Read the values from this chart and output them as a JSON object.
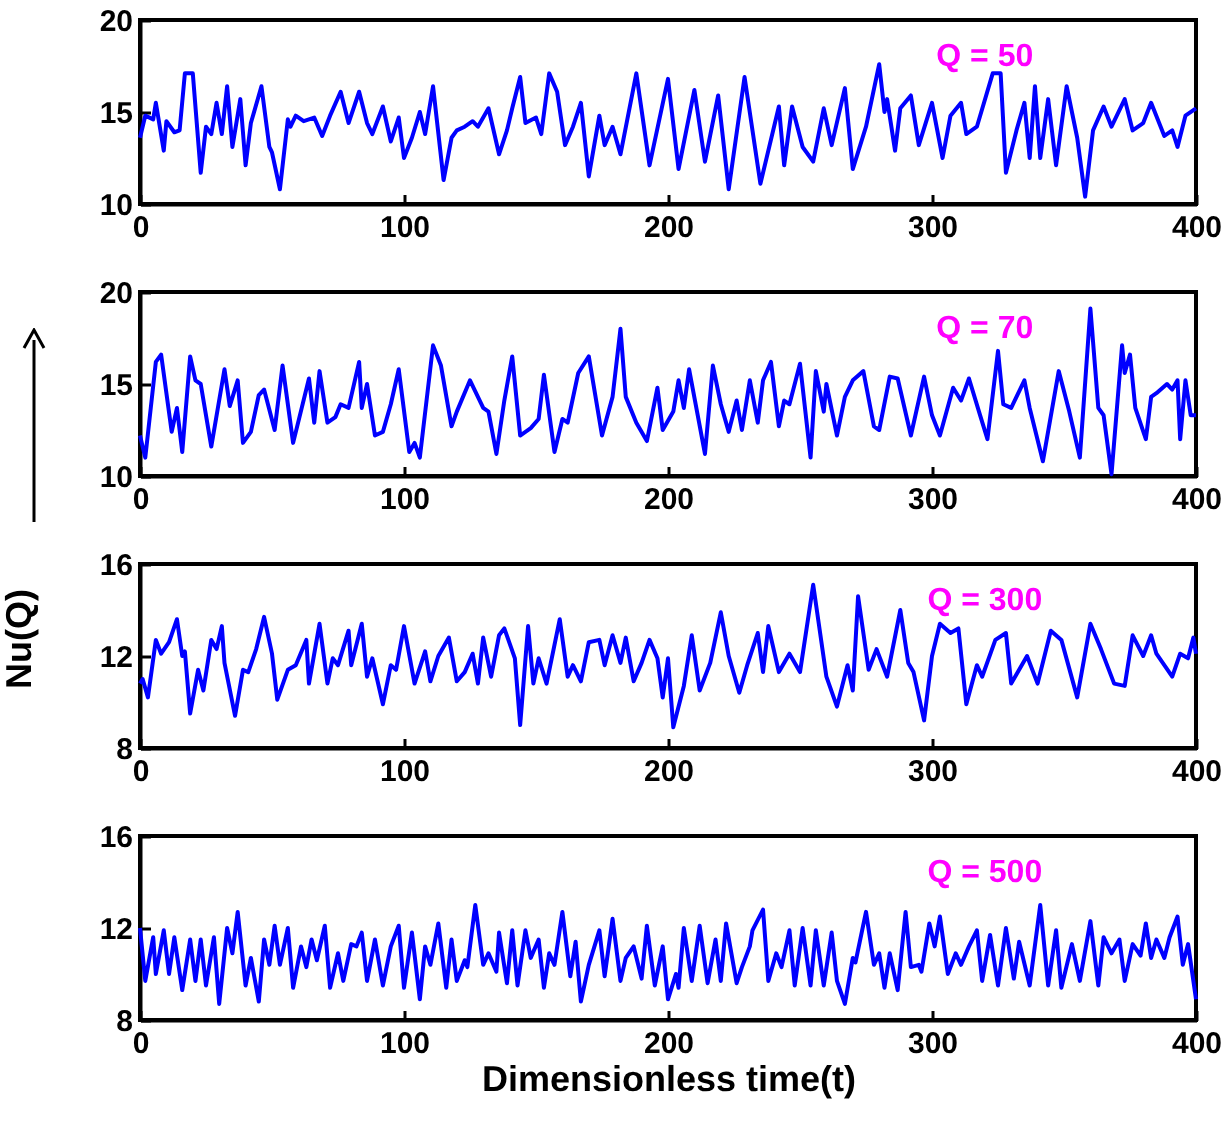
{
  "chart_data": [
    {
      "type": "line",
      "x": [
        0,
        2,
        5,
        6,
        9,
        10,
        13,
        15,
        17,
        20,
        23,
        25,
        27,
        29,
        31,
        33,
        35,
        38,
        40,
        42,
        46,
        49,
        50,
        53,
        56,
        57,
        59,
        62,
        66,
        69,
        72,
        76,
        79,
        83,
        86,
        88,
        92,
        95,
        98,
        100,
        103,
        106,
        108,
        111,
        115,
        118,
        120,
        123,
        126,
        128,
        132,
        136,
        139,
        141,
        144,
        146,
        150,
        152,
        155,
        158,
        161,
        164,
        167,
        170,
        174,
        176,
        179,
        182,
        188,
        193,
        200,
        204,
        210,
        214,
        219,
        223,
        229,
        235,
        242,
        244,
        247,
        251,
        255,
        259,
        262,
        267,
        270,
        275,
        280,
        282,
        283,
        286,
        288,
        292,
        295,
        300,
        304,
        307,
        311,
        313,
        317,
        323,
        326,
        328,
        332,
        335,
        337,
        339,
        341,
        344,
        347,
        351,
        355,
        358,
        361,
        365,
        368,
        373,
        376,
        380,
        383,
        388,
        391,
        393,
        396,
        400
      ],
      "series": [
        {
          "color": "#0000ff",
          "values": [
            13.6,
            14.8,
            14.6,
            15.5,
            12.9,
            14.5,
            13.9,
            14.0,
            17.1,
            17.1,
            11.7,
            14.2,
            13.8,
            15.5,
            13.8,
            16.4,
            13.1,
            15.7,
            12.1,
            14.4,
            16.4,
            13.1,
            12.8,
            10.8,
            14.6,
            14.2,
            14.8,
            14.5,
            14.7,
            13.7,
            14.8,
            16.1,
            14.4,
            16.1,
            14.4,
            13.8,
            15.3,
            13.4,
            14.7,
            12.5,
            13.6,
            15.0,
            13.8,
            16.4,
            11.3,
            13.6,
            14.0,
            14.2,
            14.5,
            14.2,
            15.2,
            12.7,
            14.0,
            15.2,
            16.9,
            14.4,
            14.7,
            13.8,
            17.1,
            16.1,
            13.2,
            14.2,
            15.5,
            11.5,
            14.8,
            13.2,
            14.2,
            12.7,
            17.1,
            12.1,
            16.8,
            11.9,
            16.2,
            12.3,
            15.9,
            10.8,
            16.9,
            11.1,
            15.3,
            12.1,
            15.3,
            13.1,
            12.3,
            15.2,
            13.2,
            16.3,
            11.9,
            14.2,
            17.6,
            15.0,
            15.7,
            12.9,
            15.2,
            15.9,
            13.2,
            15.5,
            12.5,
            14.8,
            15.5,
            13.8,
            14.2,
            17.1,
            17.1,
            11.7,
            14.0,
            15.5,
            12.5,
            16.4,
            12.5,
            15.7,
            12.1,
            16.4,
            13.6,
            10.4,
            14.0,
            15.3,
            14.2,
            15.7,
            14.0,
            14.4,
            15.5,
            13.7,
            14.0,
            13.1,
            14.8,
            15.2
          ]
        }
      ],
      "xlim": [
        0,
        400
      ],
      "xticks": [
        0,
        100,
        200,
        300,
        400
      ],
      "ylim": [
        10,
        20
      ],
      "yticks": [
        10,
        15,
        20
      ],
      "annotations": [
        "Q = 50"
      ]
    },
    {
      "type": "line",
      "x": [
        0,
        2,
        6,
        8,
        12,
        14,
        16,
        19,
        21,
        23,
        27,
        32,
        34,
        37,
        39,
        42,
        45,
        47,
        51,
        54,
        58,
        64,
        66,
        68,
        71,
        74,
        76,
        79,
        83,
        84,
        86,
        89,
        92,
        95,
        98,
        102,
        104,
        106,
        111,
        114,
        118,
        120,
        125,
        130,
        132,
        135,
        138,
        141,
        144,
        148,
        151,
        153,
        157,
        160,
        162,
        166,
        170,
        175,
        179,
        182,
        184,
        188,
        192,
        196,
        198,
        202,
        204,
        206,
        208,
        214,
        217,
        220,
        223,
        226,
        228,
        231,
        234,
        236,
        239,
        242,
        244,
        246,
        250,
        254,
        256,
        259,
        260,
        264,
        267,
        270,
        274,
        278,
        280,
        284,
        287,
        292,
        297,
        300,
        303,
        308,
        311,
        314,
        318,
        321,
        325,
        327,
        330,
        335,
        337,
        342,
        348,
        352,
        356,
        360,
        363,
        365,
        368,
        372,
        373,
        375,
        377,
        381,
        383,
        385,
        389,
        391,
        393,
        394,
        396,
        398,
        400
      ],
      "series": [
        {
          "color": "#0000ff",
          "values": [
            12.2,
            11.0,
            16.2,
            16.6,
            12.4,
            13.7,
            11.3,
            16.5,
            15.2,
            15.0,
            11.6,
            15.8,
            13.8,
            15.2,
            11.8,
            12.4,
            14.4,
            14.7,
            12.5,
            16.0,
            11.8,
            15.3,
            12.9,
            15.7,
            12.9,
            13.2,
            13.9,
            13.7,
            16.2,
            13.7,
            15.0,
            12.2,
            12.4,
            13.9,
            15.8,
            11.3,
            11.8,
            11.0,
            17.1,
            16.0,
            12.7,
            13.5,
            15.2,
            13.7,
            13.5,
            11.2,
            14.1,
            16.5,
            12.2,
            12.6,
            13.1,
            15.5,
            11.3,
            13.1,
            12.9,
            15.6,
            16.5,
            12.2,
            14.3,
            18.0,
            14.3,
            12.9,
            11.9,
            14.8,
            12.5,
            13.5,
            15.2,
            13.7,
            15.8,
            11.2,
            16.0,
            13.9,
            12.4,
            14.1,
            12.5,
            15.2,
            12.9,
            15.2,
            16.2,
            12.7,
            14.1,
            13.9,
            16.1,
            11.0,
            15.7,
            13.5,
            15.0,
            12.2,
            14.3,
            15.2,
            15.7,
            12.7,
            12.5,
            15.4,
            15.3,
            12.2,
            15.4,
            13.3,
            12.2,
            14.8,
            14.1,
            15.3,
            13.4,
            12.0,
            16.8,
            13.9,
            13.7,
            15.2,
            13.7,
            10.8,
            15.7,
            13.5,
            11.0,
            19.1,
            13.7,
            13.3,
            10.1,
            17.1,
            15.6,
            16.6,
            13.7,
            12.0,
            14.3,
            14.5,
            15.0,
            14.7,
            15.2,
            12.0,
            15.2,
            13.3,
            13.3
          ]
        }
      ],
      "xlim": [
        0,
        400
      ],
      "xticks": [
        0,
        100,
        200,
        300,
        400
      ],
      "ylim": [
        10,
        20
      ],
      "yticks": [
        10,
        15,
        20
      ],
      "annotations": [
        "Q = 70"
      ]
    },
    {
      "type": "line",
      "ylabel": "Nu(Q)",
      "x": [
        0,
        1,
        3,
        6,
        8,
        11,
        14,
        16,
        17,
        19,
        22,
        24,
        27,
        29,
        31,
        32,
        36,
        39,
        41,
        44,
        47,
        50,
        52,
        56,
        59,
        63,
        64,
        68,
        71,
        73,
        75,
        79,
        80,
        84,
        86,
        88,
        92,
        95,
        97,
        100,
        104,
        108,
        110,
        113,
        117,
        120,
        123,
        126,
        128,
        130,
        133,
        136,
        138,
        142,
        144,
        147,
        149,
        151,
        154,
        159,
        162,
        164,
        167,
        170,
        174,
        176,
        179,
        182,
        184,
        187,
        190,
        193,
        196,
        198,
        200,
        202,
        206,
        209,
        212,
        216,
        220,
        223,
        227,
        230,
        234,
        236,
        238,
        242,
        246,
        250,
        255,
        260,
        264,
        268,
        270,
        272,
        276,
        279,
        283,
        288,
        291,
        293,
        297,
        300,
        303,
        307,
        310,
        313,
        317,
        319,
        324,
        328,
        330,
        333,
        336,
        340,
        345,
        349,
        355,
        360,
        364,
        369,
        373,
        376,
        380,
        383,
        385,
        391,
        394,
        397,
        399,
        400
      ],
      "series": [
        {
          "color": "#0000ff",
          "values": [
            10.8,
            11.0,
            10.2,
            12.7,
            12.1,
            12.6,
            13.6,
            12.0,
            12.2,
            9.5,
            11.4,
            10.5,
            12.7,
            12.3,
            13.3,
            11.7,
            9.4,
            11.4,
            11.3,
            12.3,
            13.7,
            12.1,
            10.1,
            11.4,
            11.6,
            12.7,
            10.8,
            13.4,
            10.8,
            11.9,
            11.6,
            13.1,
            11.6,
            13.4,
            11.1,
            11.9,
            9.9,
            11.6,
            11.4,
            13.3,
            10.8,
            12.2,
            10.9,
            12.0,
            12.8,
            10.9,
            11.3,
            12.1,
            10.8,
            12.8,
            11.1,
            12.9,
            13.2,
            11.9,
            9.0,
            13.3,
            10.8,
            11.9,
            10.8,
            13.6,
            11.1,
            11.6,
            10.9,
            12.6,
            12.7,
            11.6,
            12.9,
            11.7,
            12.8,
            10.9,
            11.7,
            12.7,
            11.9,
            10.2,
            11.9,
            8.9,
            10.7,
            12.9,
            10.5,
            11.7,
            13.9,
            12.0,
            10.4,
            11.6,
            13.0,
            11.3,
            13.3,
            11.3,
            12.1,
            11.3,
            15.1,
            11.1,
            9.8,
            11.6,
            10.5,
            14.6,
            11.4,
            12.3,
            11.1,
            14.0,
            11.7,
            11.3,
            9.2,
            12.0,
            13.4,
            13.0,
            13.2,
            9.9,
            11.6,
            11.1,
            12.7,
            13.0,
            10.8,
            11.4,
            12.0,
            10.8,
            13.1,
            12.7,
            10.2,
            13.4,
            12.3,
            10.8,
            10.7,
            12.9,
            12.0,
            12.9,
            12.1,
            11.1,
            12.1,
            11.9,
            12.8,
            12.1
          ]
        }
      ],
      "xlim": [
        0,
        400
      ],
      "xticks": [
        0,
        100,
        200,
        300,
        400
      ],
      "ylim": [
        8,
        16
      ],
      "yticks": [
        8,
        12,
        16
      ],
      "annotations": [
        "Q = 300"
      ]
    },
    {
      "type": "line",
      "xlabel": "Dimensionless time(t)",
      "x": [
        0,
        2,
        5,
        6,
        9,
        11,
        13,
        16,
        19,
        21,
        23,
        25,
        28,
        30,
        33,
        35,
        37,
        40,
        42,
        45,
        47,
        49,
        51,
        53,
        56,
        58,
        61,
        63,
        65,
        67,
        70,
        72,
        75,
        77,
        80,
        82,
        84,
        86,
        89,
        92,
        95,
        98,
        100,
        103,
        106,
        108,
        110,
        113,
        116,
        118,
        120,
        123,
        124,
        127,
        130,
        132,
        135,
        136,
        139,
        141,
        143,
        146,
        148,
        151,
        153,
        155,
        157,
        160,
        163,
        165,
        167,
        170,
        174,
        176,
        179,
        182,
        184,
        187,
        190,
        192,
        195,
        198,
        200,
        203,
        204,
        206,
        209,
        212,
        215,
        218,
        220,
        222,
        226,
        228,
        231,
        232,
        236,
        238,
        241,
        243,
        246,
        248,
        251,
        254,
        256,
        259,
        262,
        264,
        267,
        270,
        271,
        275,
        278,
        280,
        282,
        284,
        287,
        290,
        292,
        295,
        296,
        299,
        301,
        303,
        306,
        309,
        311,
        314,
        317,
        319,
        322,
        325,
        328,
        331,
        333,
        337,
        341,
        344,
        347,
        349,
        353,
        356,
        360,
        363,
        365,
        368,
        371,
        373,
        376,
        379,
        381,
        383,
        385,
        388,
        390,
        393,
        395,
        397,
        400
      ],
      "series": [
        {
          "color": "#0000ff",
          "values": [
            12.0,
            9.7,
            11.6,
            10.0,
            11.9,
            10.0,
            11.6,
            9.3,
            11.5,
            9.7,
            11.5,
            9.5,
            11.6,
            8.7,
            12.0,
            10.9,
            12.7,
            9.5,
            10.7,
            8.8,
            11.5,
            10.4,
            12.1,
            10.4,
            12.0,
            9.4,
            11.2,
            10.3,
            11.5,
            10.6,
            12.1,
            9.4,
            10.9,
            9.7,
            11.3,
            11.2,
            11.8,
            9.7,
            11.5,
            9.5,
            11.2,
            12.1,
            9.4,
            11.8,
            8.9,
            11.2,
            10.4,
            12.2,
            9.4,
            11.5,
            9.7,
            10.6,
            10.3,
            13.0,
            10.4,
            10.9,
            10.1,
            11.8,
            9.6,
            11.9,
            9.5,
            11.9,
            10.7,
            11.5,
            9.4,
            10.9,
            10.4,
            12.7,
            9.9,
            11.4,
            8.8,
            10.4,
            11.9,
            9.9,
            12.4,
            9.7,
            10.7,
            11.2,
            9.8,
            12.1,
            9.5,
            11.2,
            8.9,
            10.0,
            9.4,
            12.0,
            9.7,
            12.1,
            9.6,
            11.5,
            9.7,
            12.2,
            9.6,
            10.3,
            11.2,
            11.9,
            12.8,
            9.7,
            10.9,
            10.3,
            11.9,
            9.5,
            12.0,
            9.5,
            11.9,
            9.5,
            11.8,
            9.7,
            8.7,
            10.7,
            10.5,
            12.7,
            10.4,
            10.9,
            9.4,
            10.9,
            9.3,
            12.7,
            10.3,
            10.4,
            10.1,
            12.2,
            11.2,
            12.5,
            10.0,
            10.9,
            10.4,
            11.2,
            11.9,
            9.7,
            11.7,
            9.5,
            12.0,
            9.8,
            11.4,
            9.5,
            13.0,
            9.5,
            11.9,
            9.4,
            11.3,
            9.7,
            12.3,
            9.5,
            11.6,
            10.9,
            11.5,
            9.7,
            11.3,
            10.8,
            12.2,
            10.7,
            11.5,
            10.7,
            11.6,
            12.5,
            10.4,
            11.3,
            8.9
          ]
        }
      ],
      "xlim": [
        0,
        400
      ],
      "xticks": [
        0,
        100,
        200,
        300,
        400
      ],
      "ylim": [
        8,
        16
      ],
      "yticks": [
        8,
        12,
        16
      ],
      "annotations": [
        "Q = 500"
      ]
    }
  ]
}
